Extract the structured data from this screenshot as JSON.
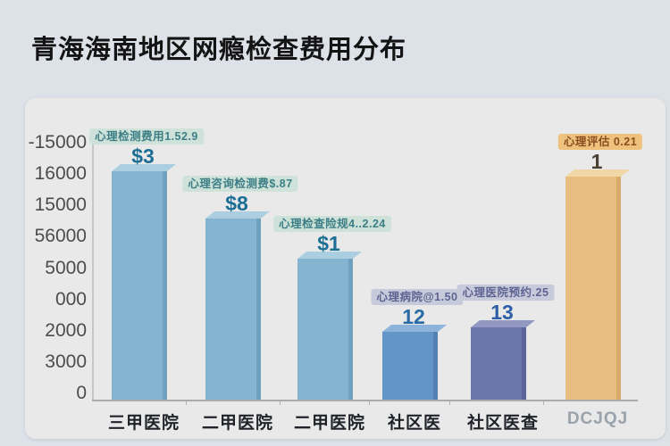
{
  "title": "青海海南地区网瘾检查费用分布",
  "chart_data": {
    "type": "bar",
    "title": "青海海南地区网瘾检查费用分布",
    "xlabel": "",
    "ylabel": "",
    "ylim": [
      0,
      16000
    ],
    "grid": false,
    "legend": "none",
    "y_tick_labels_top_to_bottom": [
      "-15000",
      "16000",
      "15000",
      "56000",
      "5000",
      "000",
      "2000",
      "3000",
      "0"
    ],
    "categories": [
      "三甲医院",
      "二甲医院",
      "二甲医院",
      "社区医",
      "社区医查",
      "DCJQJ"
    ],
    "values": [
      14200,
      11300,
      8800,
      4200,
      4500,
      13900
    ],
    "value_labels": [
      "$3",
      "$8",
      "$1",
      "12",
      "13",
      "1"
    ],
    "annotations": [
      "心理检测费用1.52.9",
      "心理咨询检测费$.87",
      "心理检查险规4..2.24",
      "心理病院@1.50",
      "心理医院预约.25",
      "心理评估 0.21"
    ],
    "colors": [
      {
        "front": "#85b4d0",
        "top": "#abcfe0",
        "side": "#6fa2bf",
        "ann_bg": "#cfe2d9",
        "ann_fg": "#3c7e86",
        "val_fg": "#1d6e95",
        "cat_fg": "#1f2329"
      },
      {
        "front": "#85b4d0",
        "top": "#abcfe0",
        "side": "#6fa2bf",
        "ann_bg": "#cfe2d9",
        "ann_fg": "#3c7e86",
        "val_fg": "#1d6e95",
        "cat_fg": "#1f2329"
      },
      {
        "front": "#85b4d0",
        "top": "#abcfe0",
        "side": "#6fa2bf",
        "ann_bg": "#cfe2d9",
        "ann_fg": "#3c7e86",
        "val_fg": "#1d6e95",
        "cat_fg": "#1f2329"
      },
      {
        "front": "#6495c9",
        "top": "#8db3da",
        "side": "#5480b3",
        "ann_bg": "#c7cada",
        "ann_fg": "#5e6492",
        "val_fg": "#2a6aa5",
        "cat_fg": "#1f2329"
      },
      {
        "front": "#6d76ab",
        "top": "#9199c2",
        "side": "#5c639a",
        "ann_bg": "#c7cada",
        "ann_fg": "#5e6492",
        "val_fg": "#2e5ea6",
        "cat_fg": "#1f2329"
      },
      {
        "front": "#e7bd80",
        "top": "#f0d7a5",
        "side": "#d9ab6a",
        "ann_bg": "#eec27d",
        "ann_fg": "#8a4d20",
        "val_fg": "#4a3f30",
        "cat_fg": "#9aa2ac"
      }
    ],
    "panel_bg": "#e9e9e9",
    "page_bg": "#dde1e8"
  }
}
